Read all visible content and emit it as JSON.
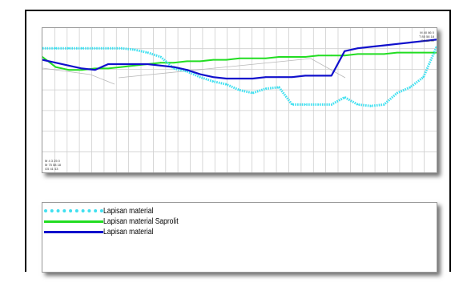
{
  "chart_data": {
    "type": "line",
    "title": "",
    "xlabel": "",
    "ylabel": "",
    "grid": true,
    "x": [
      0,
      1,
      2,
      3,
      4,
      5,
      6,
      7,
      8,
      9,
      10,
      11,
      12,
      13,
      14,
      15,
      16,
      17,
      18,
      19,
      20,
      21,
      22,
      23,
      24,
      25,
      26,
      27,
      28,
      29,
      30
    ],
    "xlim": [
      0,
      30
    ],
    "ylim": [
      -8,
      2
    ],
    "series": [
      {
        "name": "Lapisan material",
        "color": "#40e0f0",
        "style": "dotted",
        "values": [
          0.6,
          0.6,
          0.6,
          0.6,
          0.6,
          0.6,
          0.6,
          0.5,
          0.3,
          0.0,
          -0.8,
          -1.0,
          -1.4,
          -1.7,
          -1.9,
          -2.3,
          -2.5,
          -2.2,
          -2.1,
          -3.3,
          -3.3,
          -3.3,
          -3.3,
          -2.8,
          -3.3,
          -3.4,
          -3.3,
          -2.5,
          -2.1,
          -1.4,
          0.7
        ]
      },
      {
        "name": "Lapisan material Saprolit",
        "color": "#22dd22",
        "style": "solid",
        "values": [
          0.0,
          -0.7,
          -0.9,
          -0.9,
          -0.8,
          -0.8,
          -0.7,
          -0.6,
          -0.5,
          -0.4,
          -0.4,
          -0.3,
          -0.3,
          -0.2,
          -0.2,
          -0.1,
          -0.1,
          -0.1,
          0.0,
          0.0,
          0.0,
          0.1,
          0.1,
          0.1,
          0.2,
          0.2,
          0.2,
          0.3,
          0.3,
          0.3,
          0.3
        ]
      },
      {
        "name": "Lapisan material",
        "color": "#1010cc",
        "style": "solid",
        "values": [
          -0.2,
          -0.4,
          -0.6,
          -0.8,
          -0.9,
          -0.5,
          -0.5,
          -0.5,
          -0.5,
          -0.6,
          -0.7,
          -0.9,
          -1.2,
          -1.4,
          -1.5,
          -1.5,
          -1.5,
          -1.4,
          -1.4,
          -1.4,
          -1.3,
          -1.3,
          -1.3,
          0.4,
          0.6,
          0.7,
          0.8,
          0.9,
          1.0,
          1.1,
          1.2
        ]
      }
    ],
    "corner_labels": {
      "top_right": [
        "M 40 86 0",
        "T 85 58 18",
        "G3 50 41"
      ],
      "bottom_left": [
        "M 4 3 25 0",
        "M 75 58 18",
        "G5 41 43"
      ]
    }
  },
  "legend": {
    "items": [
      {
        "label": "Lapisan material",
        "color": "#40e0f0",
        "style": "dotted"
      },
      {
        "label": "Lapisan material Saprolit",
        "color": "#22dd22",
        "style": "solid"
      },
      {
        "label": "Lapisan material",
        "color": "#1010cc",
        "style": "solid"
      }
    ]
  }
}
